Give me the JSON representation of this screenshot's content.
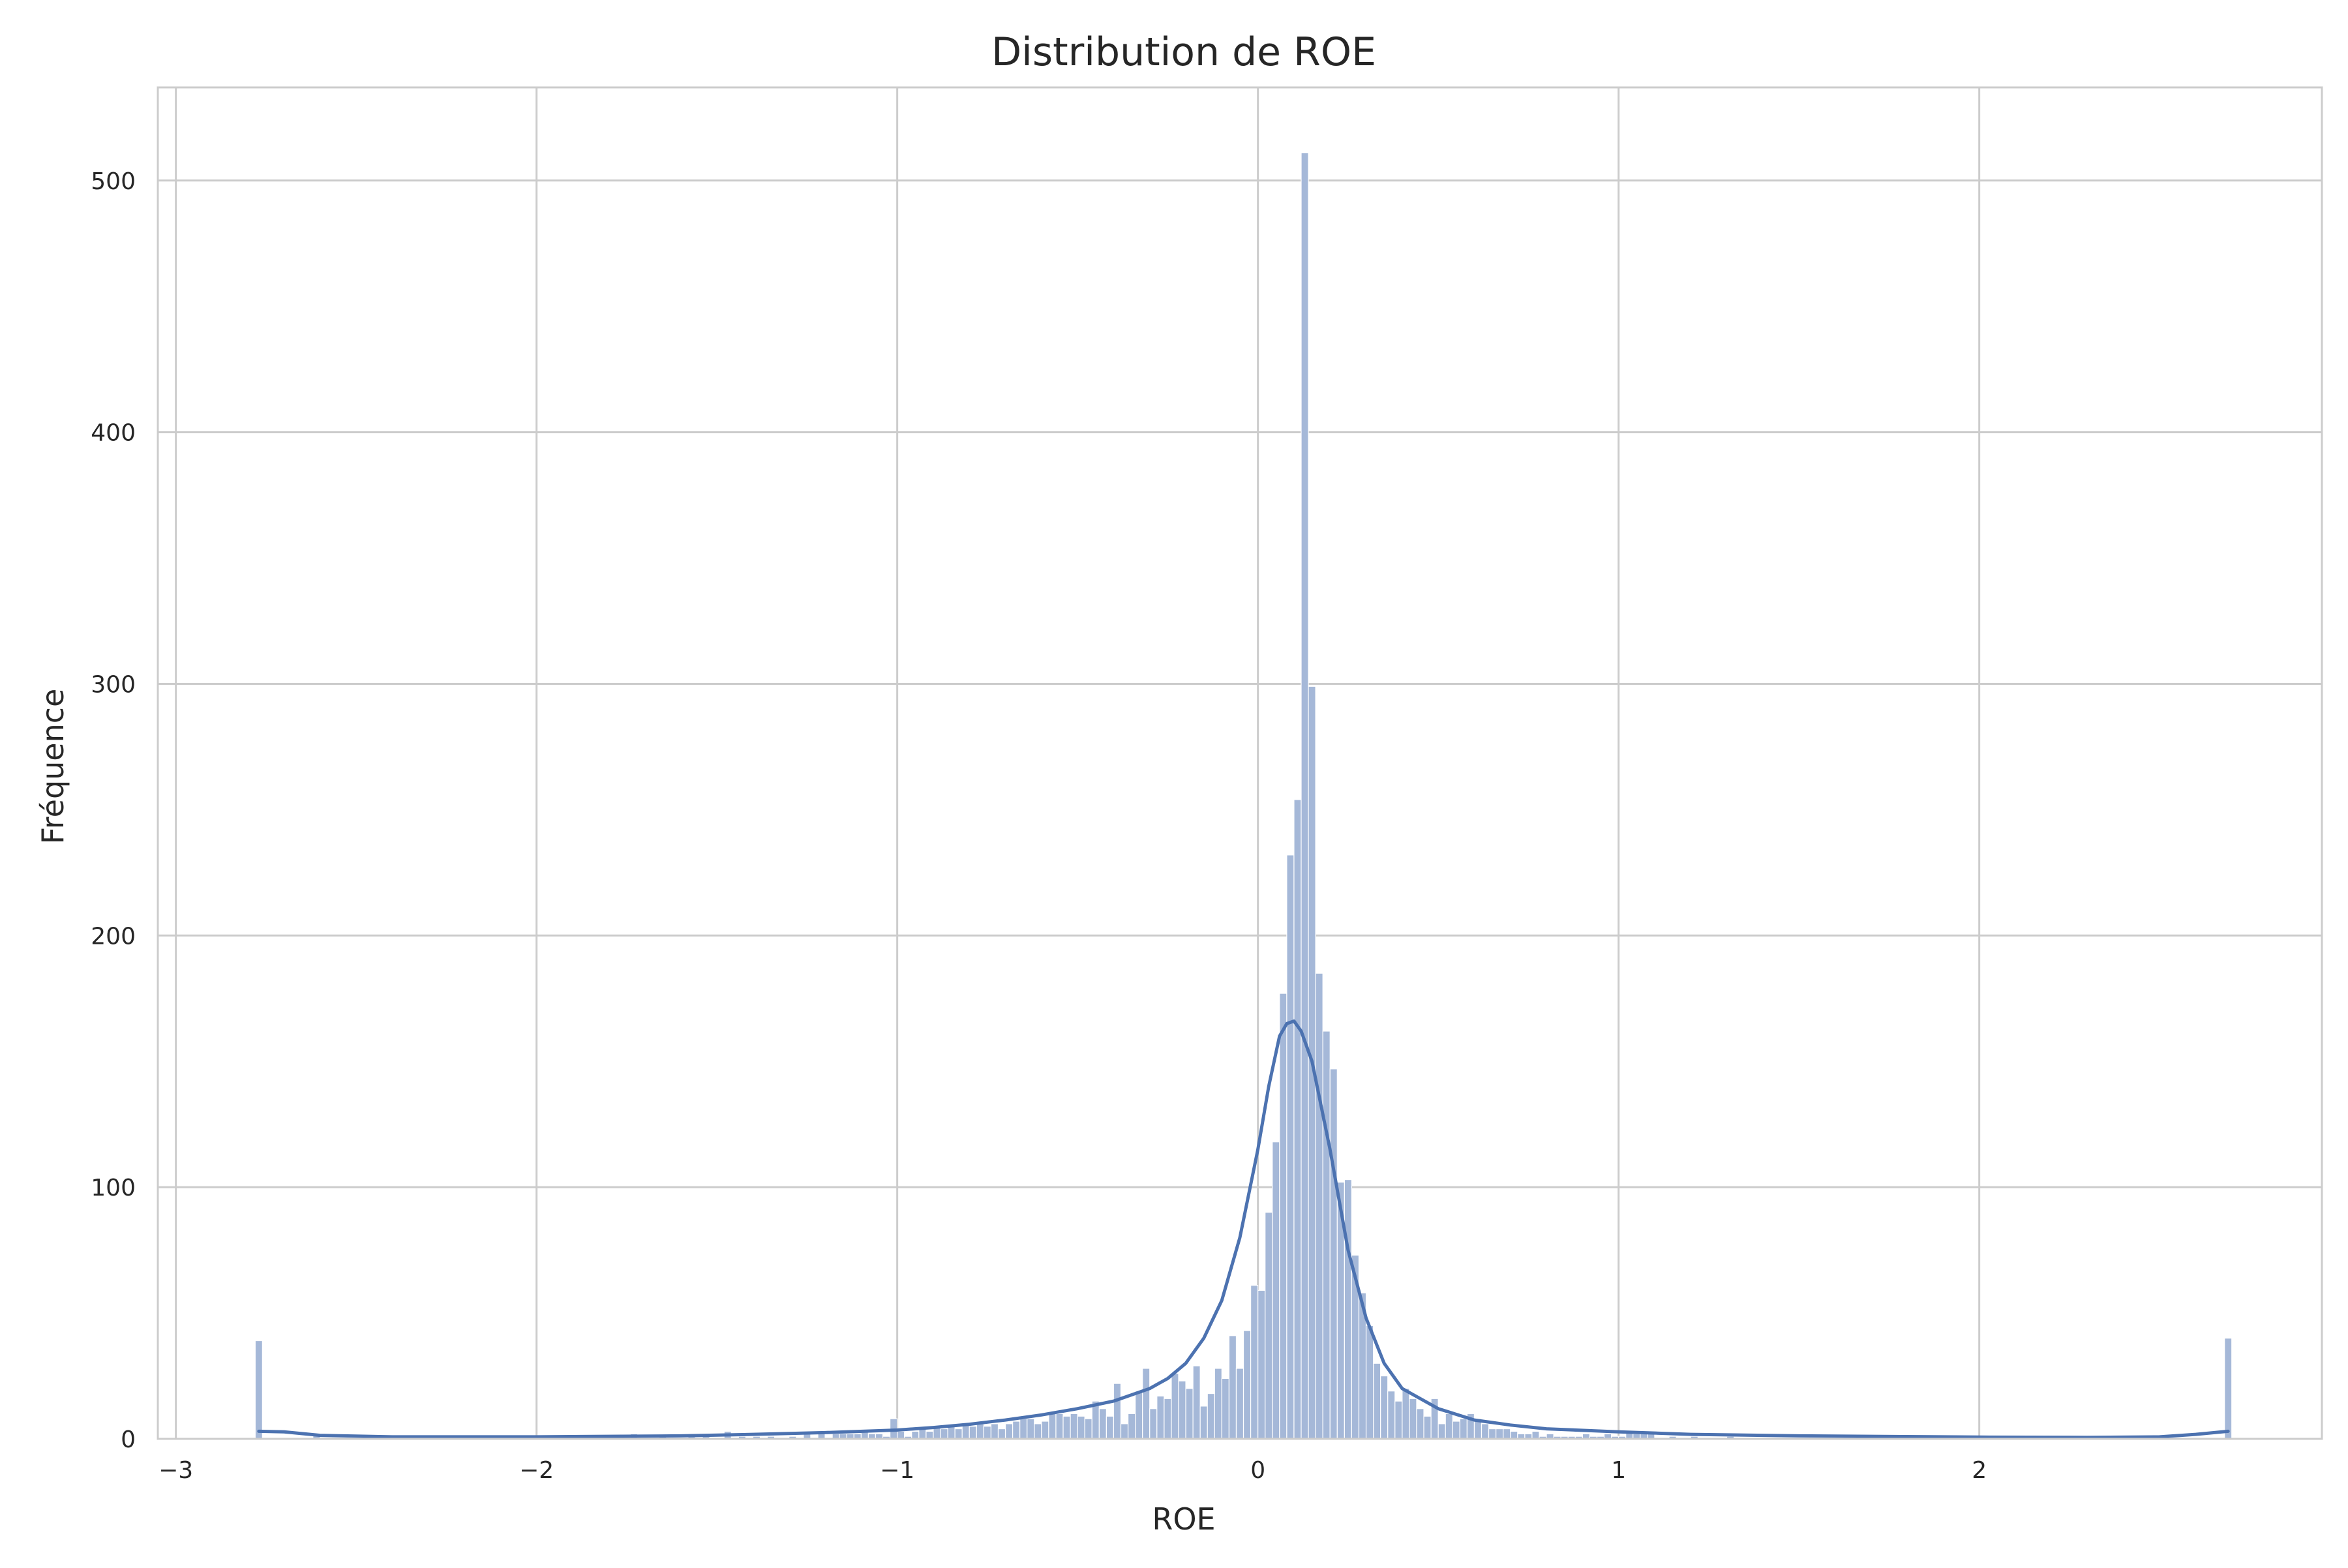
{
  "chart_data": {
    "type": "bar",
    "subtype": "histogram with KDE line",
    "title": "Distribution de ROE",
    "xlabel": "ROE",
    "ylabel": "Fréquence",
    "xlim": [
      -3.05,
      2.95
    ],
    "ylim": [
      0,
      537
    ],
    "x_ticks": [
      -3,
      -2,
      -1,
      0,
      1,
      2
    ],
    "x_tick_labels": [
      "−3",
      "−2",
      "−1",
      "0",
      "1",
      "2"
    ],
    "y_ticks": [
      0,
      100,
      200,
      300,
      400,
      500
    ],
    "y_tick_labels": [
      "0",
      "100",
      "200",
      "300",
      "400",
      "500"
    ],
    "grid": true,
    "legend": "none",
    "bin_width": 0.02,
    "colors": {
      "bar_fill": "#a5b8d8",
      "bar_edge": "#ffffff",
      "kde_line": "#4c72b0",
      "grid": "#cccccc",
      "axes_edge": "#cccccc",
      "background": "#ffffff"
    },
    "bins": [
      [
        -2.77,
        39
      ],
      [
        -2.61,
        2
      ],
      [
        -2.31,
        1
      ],
      [
        -1.87,
        1
      ],
      [
        -1.73,
        2
      ],
      [
        -1.65,
        1
      ],
      [
        -1.57,
        2
      ],
      [
        -1.53,
        1
      ],
      [
        -1.47,
        3
      ],
      [
        -1.43,
        1
      ],
      [
        -1.39,
        1
      ],
      [
        -1.35,
        1
      ],
      [
        -1.29,
        1
      ],
      [
        -1.25,
        2
      ],
      [
        -1.21,
        3
      ],
      [
        -1.17,
        2
      ],
      [
        -1.15,
        2
      ],
      [
        -1.13,
        2
      ],
      [
        -1.11,
        2
      ],
      [
        -1.09,
        3
      ],
      [
        -1.07,
        2
      ],
      [
        -1.05,
        2
      ],
      [
        -1.03,
        1
      ],
      [
        -1.01,
        8
      ],
      [
        -0.99,
        3
      ],
      [
        -0.97,
        1
      ],
      [
        -0.95,
        3
      ],
      [
        -0.93,
        4
      ],
      [
        -0.91,
        3
      ],
      [
        -0.89,
        5
      ],
      [
        -0.87,
        4
      ],
      [
        -0.85,
        5
      ],
      [
        -0.83,
        4
      ],
      [
        -0.81,
        6
      ],
      [
        -0.79,
        5
      ],
      [
        -0.77,
        6
      ],
      [
        -0.75,
        5
      ],
      [
        -0.73,
        6
      ],
      [
        -0.71,
        4
      ],
      [
        -0.69,
        6
      ],
      [
        -0.67,
        7
      ],
      [
        -0.65,
        8
      ],
      [
        -0.63,
        8
      ],
      [
        -0.61,
        6
      ],
      [
        -0.59,
        7
      ],
      [
        -0.57,
        10
      ],
      [
        -0.55,
        10
      ],
      [
        -0.53,
        9
      ],
      [
        -0.51,
        10
      ],
      [
        -0.49,
        9
      ],
      [
        -0.47,
        8
      ],
      [
        -0.45,
        15
      ],
      [
        -0.43,
        12
      ],
      [
        -0.41,
        9
      ],
      [
        -0.39,
        22
      ],
      [
        -0.37,
        6
      ],
      [
        -0.35,
        10
      ],
      [
        -0.33,
        19
      ],
      [
        -0.31,
        28
      ],
      [
        -0.29,
        12
      ],
      [
        -0.27,
        17
      ],
      [
        -0.25,
        16
      ],
      [
        -0.23,
        26
      ],
      [
        -0.21,
        23
      ],
      [
        -0.19,
        20
      ],
      [
        -0.17,
        29
      ],
      [
        -0.15,
        13
      ],
      [
        -0.13,
        18
      ],
      [
        -0.11,
        28
      ],
      [
        -0.09,
        24
      ],
      [
        -0.07,
        41
      ],
      [
        -0.05,
        28
      ],
      [
        -0.03,
        43
      ],
      [
        -0.01,
        61
      ],
      [
        0.01,
        59
      ],
      [
        0.03,
        90
      ],
      [
        0.05,
        118
      ],
      [
        0.07,
        177
      ],
      [
        0.09,
        232
      ],
      [
        0.11,
        254
      ],
      [
        0.13,
        511
      ],
      [
        0.15,
        299
      ],
      [
        0.17,
        185
      ],
      [
        0.19,
        162
      ],
      [
        0.21,
        147
      ],
      [
        0.23,
        102
      ],
      [
        0.25,
        103
      ],
      [
        0.27,
        73
      ],
      [
        0.29,
        58
      ],
      [
        0.31,
        45
      ],
      [
        0.33,
        30
      ],
      [
        0.35,
        25
      ],
      [
        0.37,
        19
      ],
      [
        0.39,
        15
      ],
      [
        0.41,
        20
      ],
      [
        0.43,
        16
      ],
      [
        0.45,
        12
      ],
      [
        0.47,
        9
      ],
      [
        0.49,
        16
      ],
      [
        0.51,
        6
      ],
      [
        0.53,
        10
      ],
      [
        0.55,
        7
      ],
      [
        0.57,
        8
      ],
      [
        0.59,
        10
      ],
      [
        0.61,
        8
      ],
      [
        0.63,
        6
      ],
      [
        0.65,
        4
      ],
      [
        0.67,
        4
      ],
      [
        0.69,
        4
      ],
      [
        0.71,
        3
      ],
      [
        0.73,
        2
      ],
      [
        0.75,
        2
      ],
      [
        0.77,
        3
      ],
      [
        0.79,
        1
      ],
      [
        0.81,
        2
      ],
      [
        0.83,
        1
      ],
      [
        0.85,
        1
      ],
      [
        0.87,
        1
      ],
      [
        0.89,
        1
      ],
      [
        0.91,
        2
      ],
      [
        0.93,
        1
      ],
      [
        0.95,
        1
      ],
      [
        0.97,
        2
      ],
      [
        0.99,
        1
      ],
      [
        1.01,
        1
      ],
      [
        1.03,
        3
      ],
      [
        1.05,
        2
      ],
      [
        1.07,
        3
      ],
      [
        1.09,
        2
      ],
      [
        1.15,
        1
      ],
      [
        1.21,
        1
      ],
      [
        1.31,
        1
      ],
      [
        1.81,
        1
      ],
      [
        1.91,
        1
      ],
      [
        2.69,
        40
      ]
    ],
    "kde": [
      [
        -2.77,
        3
      ],
      [
        -2.7,
        2.8
      ],
      [
        -2.6,
        1.4
      ],
      [
        -2.4,
        0.8
      ],
      [
        -2.0,
        0.8
      ],
      [
        -1.8,
        1
      ],
      [
        -1.6,
        1.2
      ],
      [
        -1.4,
        1.8
      ],
      [
        -1.2,
        2.5
      ],
      [
        -1.0,
        3.5
      ],
      [
        -0.9,
        4.5
      ],
      [
        -0.8,
        5.8
      ],
      [
        -0.7,
        7.5
      ],
      [
        -0.6,
        9.5
      ],
      [
        -0.5,
        12
      ],
      [
        -0.4,
        15
      ],
      [
        -0.3,
        20
      ],
      [
        -0.25,
        24
      ],
      [
        -0.2,
        30
      ],
      [
        -0.15,
        40
      ],
      [
        -0.1,
        55
      ],
      [
        -0.05,
        80
      ],
      [
        0.0,
        115
      ],
      [
        0.03,
        140
      ],
      [
        0.06,
        160
      ],
      [
        0.08,
        165
      ],
      [
        0.1,
        166
      ],
      [
        0.12,
        162
      ],
      [
        0.15,
        150
      ],
      [
        0.2,
        115
      ],
      [
        0.25,
        75
      ],
      [
        0.3,
        48
      ],
      [
        0.35,
        30
      ],
      [
        0.4,
        20
      ],
      [
        0.5,
        12
      ],
      [
        0.6,
        7.5
      ],
      [
        0.7,
        5.5
      ],
      [
        0.8,
        4
      ],
      [
        1.0,
        2.8
      ],
      [
        1.2,
        1.8
      ],
      [
        1.5,
        1.2
      ],
      [
        1.8,
        0.9
      ],
      [
        2.0,
        0.7
      ],
      [
        2.3,
        0.6
      ],
      [
        2.5,
        0.8
      ],
      [
        2.6,
        1.8
      ],
      [
        2.69,
        3
      ]
    ]
  }
}
